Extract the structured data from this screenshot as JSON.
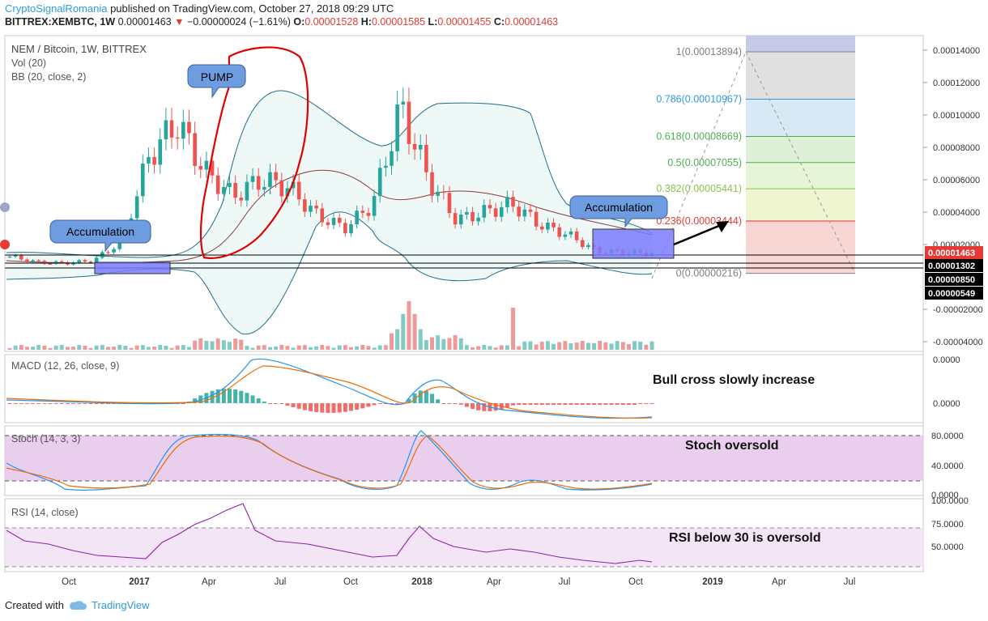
{
  "header": {
    "publisher": "CryptoSignalRomania",
    "published_text": " published on TradingView.com, October 27, 2018 09:29 UTC",
    "symbol": "BITTREX:XEMBTC, 1W",
    "last": "0.00001463",
    "change": "−0.00000024 (−1.61%)",
    "o_label": "O:",
    "o": "0.00001528",
    "h_label": "H:",
    "h": "0.00001585",
    "l_label": "L:",
    "l": "0.00001455",
    "c_label": "C:",
    "c": "0.00001463"
  },
  "main_pane": {
    "title": "NEM / Bitcoin, 1W, BITTREX",
    "vol_label": "Vol (20)",
    "bb_label": "BB (20, close, 2)"
  },
  "callouts": {
    "pump": "PUMP",
    "accumulation_left": "Accumulation",
    "accumulation_right": "Accumulation"
  },
  "fib_levels": [
    {
      "label": "1(0.00013894)",
      "value": 0.00013894,
      "color": "#808080"
    },
    {
      "label": "0.786(0.00010967)",
      "value": 0.00010967,
      "color": "#2e9be0"
    },
    {
      "label": "0.618(0.00008669)",
      "value": 8.669e-05,
      "color": "#4caf50"
    },
    {
      "label": "0.5(0.00007055)",
      "value": 7.055e-05,
      "color": "#4caf50"
    },
    {
      "label": "0.382(0.00005441)",
      "value": 5.441e-05,
      "color": "#8bc34a"
    },
    {
      "label": "0.236(0.00003444)",
      "value": 3.444e-05,
      "color": "#e53935"
    },
    {
      "label": "0(0.00000216)",
      "value": 2.16e-06,
      "color": "#808080"
    }
  ],
  "price_axis": {
    "ticks": [
      "0.00014000",
      "0.00012000",
      "0.00010000",
      "0.00008000",
      "0.00006000",
      "0.00004000",
      "0.00002000",
      "-0.00002000",
      "-0.00004000"
    ],
    "tick_values": [
      0.00014,
      0.00012,
      0.0001,
      8e-05,
      6e-05,
      4e-05,
      2e-05,
      -2e-05,
      -4e-05
    ],
    "markers": [
      {
        "label": "0.00001463",
        "value": 1.463e-05,
        "bg": "#e53935"
      },
      {
        "label": "0.00001302",
        "value": 1.302e-05,
        "bg": "#000000"
      },
      {
        "label": "0.00000850",
        "value": 8.5e-06,
        "bg": "#000000"
      },
      {
        "label": "0.00000549",
        "value": 5.49e-06,
        "bg": "#000000"
      }
    ]
  },
  "macd": {
    "label": "MACD (12, 26, close, 9)",
    "ticks": [
      "0.0000",
      "0.0000"
    ],
    "annotation": "Bull cross slowly increase"
  },
  "stoch": {
    "label": "Stoch (14, 3, 3)",
    "ticks": [
      "80.0000",
      "40.0000",
      "0.0000"
    ],
    "annotation": "Stoch oversold"
  },
  "rsi": {
    "label": "RSI (14, close)",
    "ticks": [
      "100.0000",
      "75.0000",
      "50.0000"
    ],
    "annotation": "RSI below 30 is oversold"
  },
  "time_axis": [
    "Oct",
    "2017",
    "Apr",
    "Jul",
    "Oct",
    "2018",
    "Apr",
    "Jul",
    "Oct",
    "2019",
    "Apr",
    "Jul"
  ],
  "footer": {
    "created_with": "Created with",
    "brand": "TradingView"
  },
  "colors": {
    "up": "#26a69a",
    "down": "#ef5350",
    "fib_box": "#7b7bff",
    "stoch_band": "#e1bee7",
    "rsi_band": "#f3e5f5"
  },
  "chart_data": {
    "type": "line",
    "title": "NEM / Bitcoin, 1W, BITTREX",
    "series": [
      {
        "name": "XEMBTC (close, approx.)",
        "x": [
          "2016-08",
          "2016-10",
          "2016-12",
          "2017-02",
          "2017-03",
          "2017-04",
          "2017-05",
          "2017-06",
          "2017-07",
          "2017-08",
          "2017-09",
          "2017-10",
          "2017-11",
          "2017-12",
          "2018-01",
          "2018-02",
          "2018-03",
          "2018-04",
          "2018-05",
          "2018-06",
          "2018-07",
          "2018-08",
          "2018-09",
          "2018-10"
        ],
        "values": [
          1.25e-05,
          9e-06,
          8.5e-06,
          1e-05,
          2.2e-05,
          7.5e-05,
          9.5e-05,
          6.5e-05,
          5e-05,
          6e-05,
          5.5e-05,
          3.8e-05,
          3e-05,
          4.5e-05,
          0.000105,
          6e-05,
          3.5e-05,
          4e-05,
          4.5e-05,
          3.2e-05,
          2.6e-05,
          1.6e-05,
          1.5e-05,
          1.46e-05
        ]
      }
    ],
    "ylim": [
      -4e-05,
      0.00014
    ],
    "xlim": [
      "2016-08",
      "2019-08"
    ]
  }
}
